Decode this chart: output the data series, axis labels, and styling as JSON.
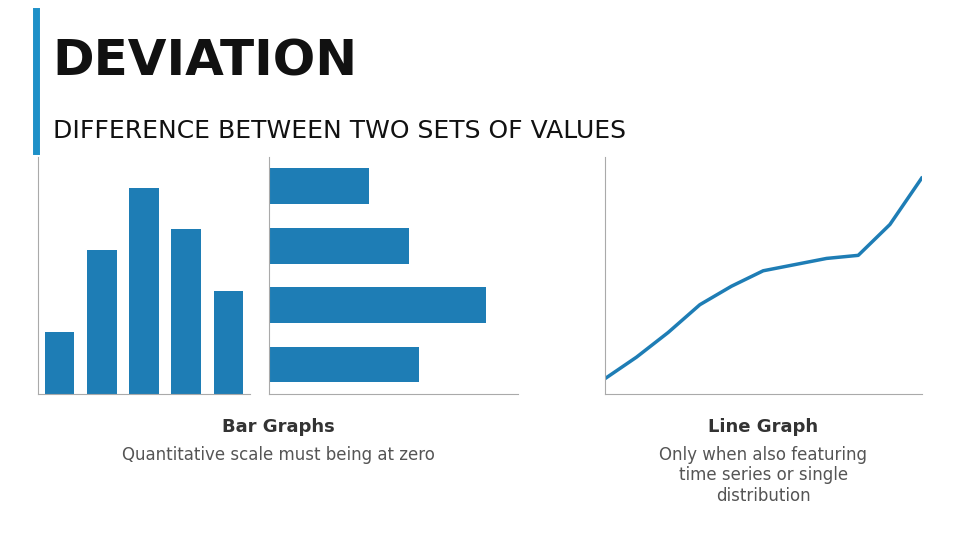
{
  "title_main": "DEVIATION",
  "title_sub": "DIFFERENCE BETWEEN TWO SETS OF VALUES",
  "accent_line_color": "#1e90c8",
  "background_color": "#ffffff",
  "bar_color": "#1e7db5",
  "line_color": "#1e7db5",
  "vertical_bar_values": [
    1.5,
    3.5,
    5.0,
    4.0,
    2.5
  ],
  "horizontal_bar_values": [
    4.5,
    6.5,
    4.2,
    3.0
  ],
  "line_x": [
    0,
    1,
    2,
    3,
    4,
    5,
    6,
    7,
    8,
    9,
    10
  ],
  "line_y": [
    0.5,
    1.2,
    2.0,
    2.9,
    3.5,
    4.0,
    4.2,
    4.4,
    4.5,
    5.5,
    7.0
  ],
  "caption_bar": "Bar Graphs",
  "caption_bar_sub": "Quantitative scale must being at zero",
  "caption_line": "Line Graph",
  "caption_line_sub": "Only when also featuring\ntime series or single\ndistribution",
  "title_fontsize": 36,
  "subtitle_fontsize": 18,
  "caption_fontsize": 13,
  "caption_sub_fontsize": 12
}
